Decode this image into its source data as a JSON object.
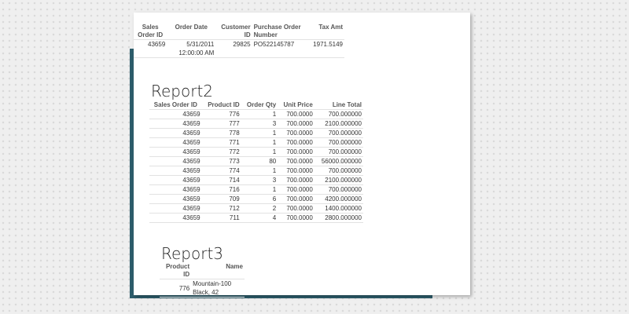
{
  "report1": {
    "headers": [
      "Sales Order ID",
      "Order Date",
      "Customer ID",
      "Purchase Order Number",
      "Tax Amt"
    ],
    "rows": [
      [
        "43659",
        "5/31/2011 12:00:00 AM",
        "29825",
        "PO522145787",
        "1971.5149"
      ]
    ]
  },
  "report2": {
    "title": "Report2",
    "headers": [
      "Sales Order ID",
      "Product ID",
      "Order Qty",
      "Unit Price",
      "Line Total"
    ],
    "rows": [
      [
        "43659",
        "776",
        "1",
        "700.0000",
        "700.000000"
      ],
      [
        "43659",
        "777",
        "3",
        "700.0000",
        "2100.000000"
      ],
      [
        "43659",
        "778",
        "1",
        "700.0000",
        "700.000000"
      ],
      [
        "43659",
        "771",
        "1",
        "700.0000",
        "700.000000"
      ],
      [
        "43659",
        "772",
        "1",
        "700.0000",
        "700.000000"
      ],
      [
        "43659",
        "773",
        "80",
        "700.0000",
        "56000.000000"
      ],
      [
        "43659",
        "774",
        "1",
        "700.0000",
        "700.000000"
      ],
      [
        "43659",
        "714",
        "3",
        "700.0000",
        "2100.000000"
      ],
      [
        "43659",
        "716",
        "1",
        "700.0000",
        "700.000000"
      ],
      [
        "43659",
        "709",
        "6",
        "700.0000",
        "4200.000000"
      ],
      [
        "43659",
        "712",
        "2",
        "700.0000",
        "1400.000000"
      ],
      [
        "43659",
        "711",
        "4",
        "700.0000",
        "2800.000000"
      ]
    ]
  },
  "report3": {
    "title": "Report3",
    "headers": [
      "Product ID",
      "Name"
    ],
    "rows": [
      [
        "776",
        "Mountain-100 Black, 42"
      ]
    ]
  }
}
